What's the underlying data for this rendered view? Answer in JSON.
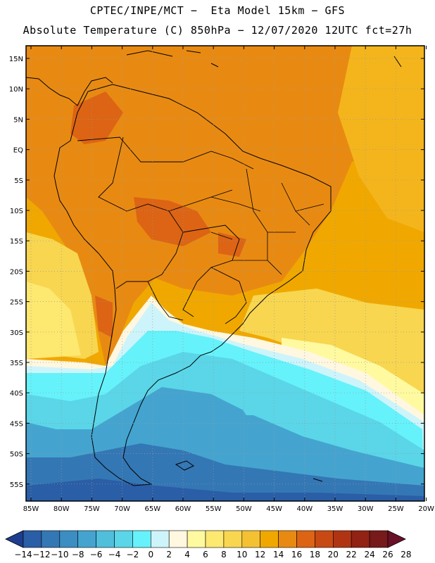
{
  "header": {
    "line1": "CPTEC/INPE/MCT −  Eta Model 15km − GFS",
    "line2": "Absolute Temperature (C) 850hPa − 12/07/2020 12UTC fct=27h"
  },
  "map": {
    "lat_labels": [
      "15N",
      "10N",
      "5N",
      "EQ",
      "5S",
      "10S",
      "15S",
      "20S",
      "25S",
      "30S",
      "35S",
      "40S",
      "45S",
      "50S",
      "55S"
    ],
    "lon_labels": [
      "85W",
      "80W",
      "75W",
      "70W",
      "65W",
      "60W",
      "55W",
      "50W",
      "45W",
      "40W",
      "35W",
      "30W",
      "25W",
      "20W"
    ]
  },
  "colorbar": {
    "colors": [
      "#1f3d8f",
      "#2a5ea6",
      "#3477b5",
      "#3b8dc2",
      "#44a4cf",
      "#4fbfdc",
      "#5ad6e8",
      "#66f2fa",
      "#cdf4fb",
      "#fff7e0",
      "#fffaa0",
      "#fde870",
      "#f8d650",
      "#f4c132",
      "#f0a800",
      "#e88a12",
      "#dc6414",
      "#c84a12",
      "#b03414",
      "#922214",
      "#761a1a",
      "#6a1028"
    ],
    "tick_labels": [
      "-14",
      "-12",
      "-10",
      "-8",
      "-6",
      "-4",
      "-2",
      "0",
      "2",
      "4",
      "6",
      "8",
      "10",
      "12",
      "14",
      "16",
      "18",
      "20",
      "22",
      "24",
      "26",
      "28"
    ]
  }
}
